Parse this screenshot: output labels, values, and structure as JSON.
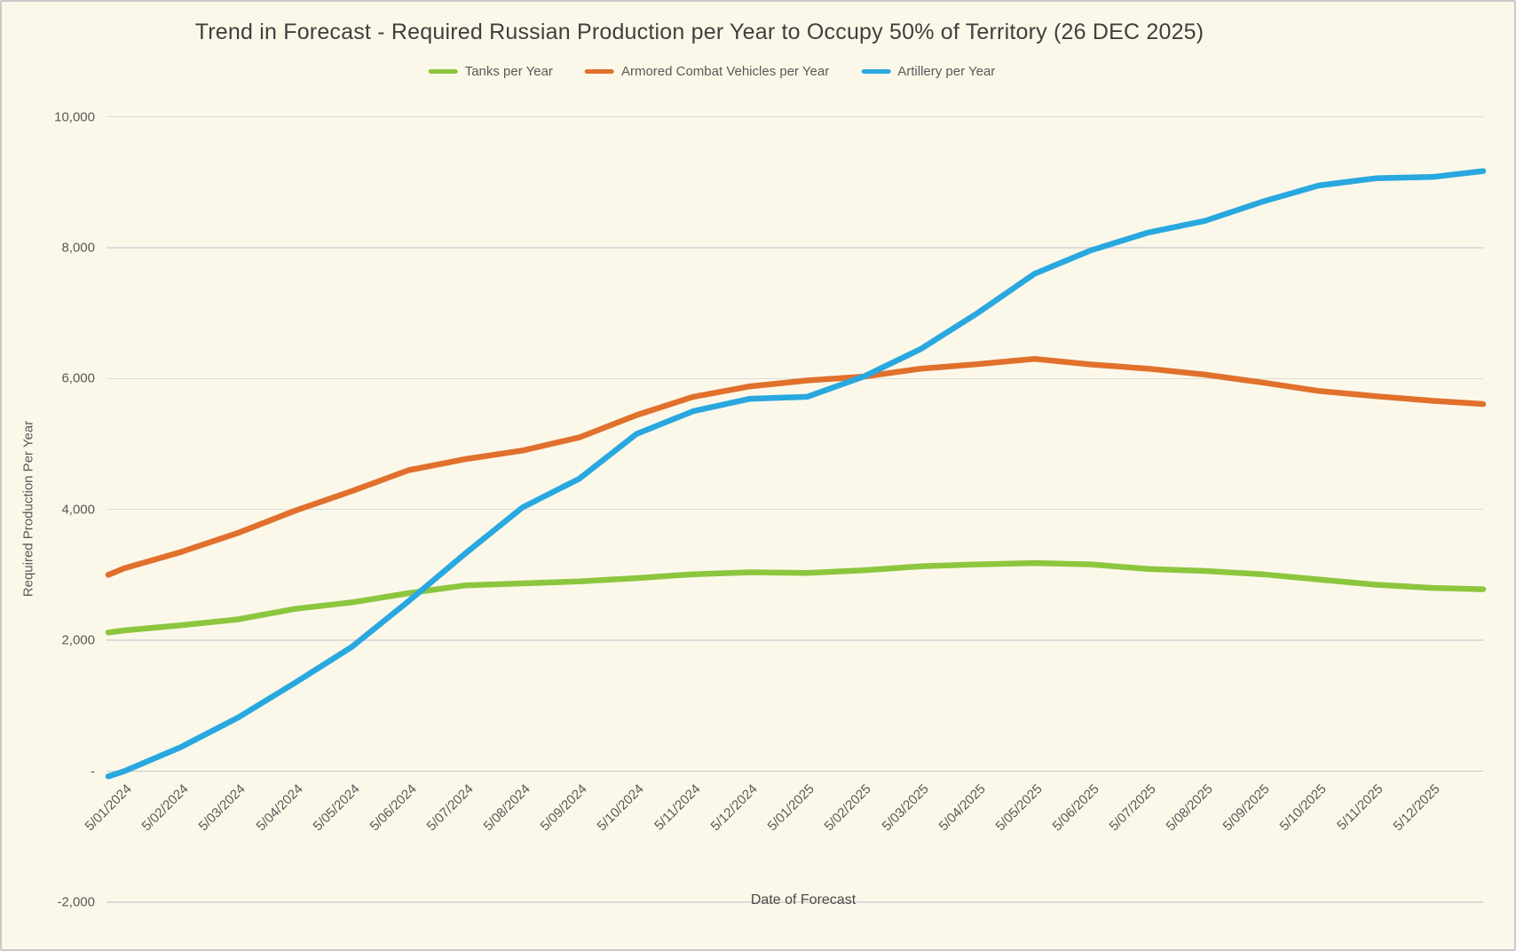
{
  "window": {
    "background_color": "#FCF8E9",
    "border_color": "#C9C9C9"
  },
  "title": {
    "text": "Trend in Forecast - Required Russian Production per Year to Occupy 50% of Territory (26 DEC 2025)"
  },
  "legend": {
    "items": [
      {
        "label": "Tanks per Year",
        "color": "#8CC63F"
      },
      {
        "label": "Armored Combat Vehicles per Year",
        "color": "#E1702D"
      },
      {
        "label": "Artillery per Year",
        "color": "#29A8E0"
      }
    ]
  },
  "axes": {
    "x_title": "Date of Forecast",
    "y_title": "Required Production Per Year"
  },
  "chart_data": {
    "type": "line",
    "title": "Trend in Forecast - Required Russian Production per Year to Occupy 50% of Territory (26 DEC 2025)",
    "xlabel": "Date of Forecast",
    "ylabel": "Required Production Per Year",
    "ylim": [
      -2000,
      10000
    ],
    "grid": true,
    "legend_position": "top",
    "ytick_values": [
      10000,
      8000,
      6000,
      4000,
      2000,
      0,
      -2000
    ],
    "ytick_labels": [
      "10,000",
      "8,000",
      "6,000",
      "4,000",
      "2,000",
      "-",
      "-2,000"
    ],
    "categories": [
      "5/01/2024",
      "5/02/2024",
      "5/03/2024",
      "5/04/2024",
      "5/05/2024",
      "5/06/2024",
      "5/07/2024",
      "5/08/2024",
      "5/09/2024",
      "5/10/2024",
      "5/11/2024",
      "5/12/2024",
      "5/01/2025",
      "5/02/2025",
      "5/03/2025",
      "5/04/2025",
      "5/05/2025",
      "5/06/2025",
      "5/07/2025",
      "5/08/2025",
      "5/09/2025",
      "5/10/2025",
      "5/11/2025",
      "5/12/2025"
    ],
    "series_note": "Underlying data is weekly; values below are read at each monthly tick. lead_value = point just before first tick; final_value = last forecast point (26 DEC 2025), drawn just past the last tick.",
    "series": [
      {
        "name": "Tanks per Year",
        "color": "#8CC63F",
        "lead_value": 2120,
        "values": [
          2150,
          2230,
          2320,
          2480,
          2580,
          2720,
          2840,
          2870,
          2900,
          2950,
          3010,
          3040,
          3030,
          3070,
          3130,
          3160,
          3180,
          3160,
          3090,
          3060,
          3010,
          2930,
          2850,
          2800
        ],
        "final_value": 2780
      },
      {
        "name": "Armored Combat Vehicles per Year",
        "color": "#E1702D",
        "lead_value": 3000,
        "values": [
          3100,
          3350,
          3640,
          3980,
          4280,
          4600,
          4770,
          4900,
          5100,
          5440,
          5720,
          5880,
          5970,
          6030,
          6150,
          6220,
          6300,
          6215,
          6150,
          6060,
          5940,
          5810,
          5730,
          5660
        ],
        "final_value": 5610
      },
      {
        "name": "Artillery per Year",
        "color": "#29A8E0",
        "lead_value": -80,
        "values": [
          0,
          370,
          820,
          1350,
          1900,
          2600,
          3330,
          4030,
          4470,
          5150,
          5500,
          5690,
          5720,
          6030,
          6450,
          7000,
          7600,
          7960,
          8230,
          8410,
          8700,
          8950,
          9060,
          9080
        ],
        "final_value": 9170
      }
    ]
  }
}
